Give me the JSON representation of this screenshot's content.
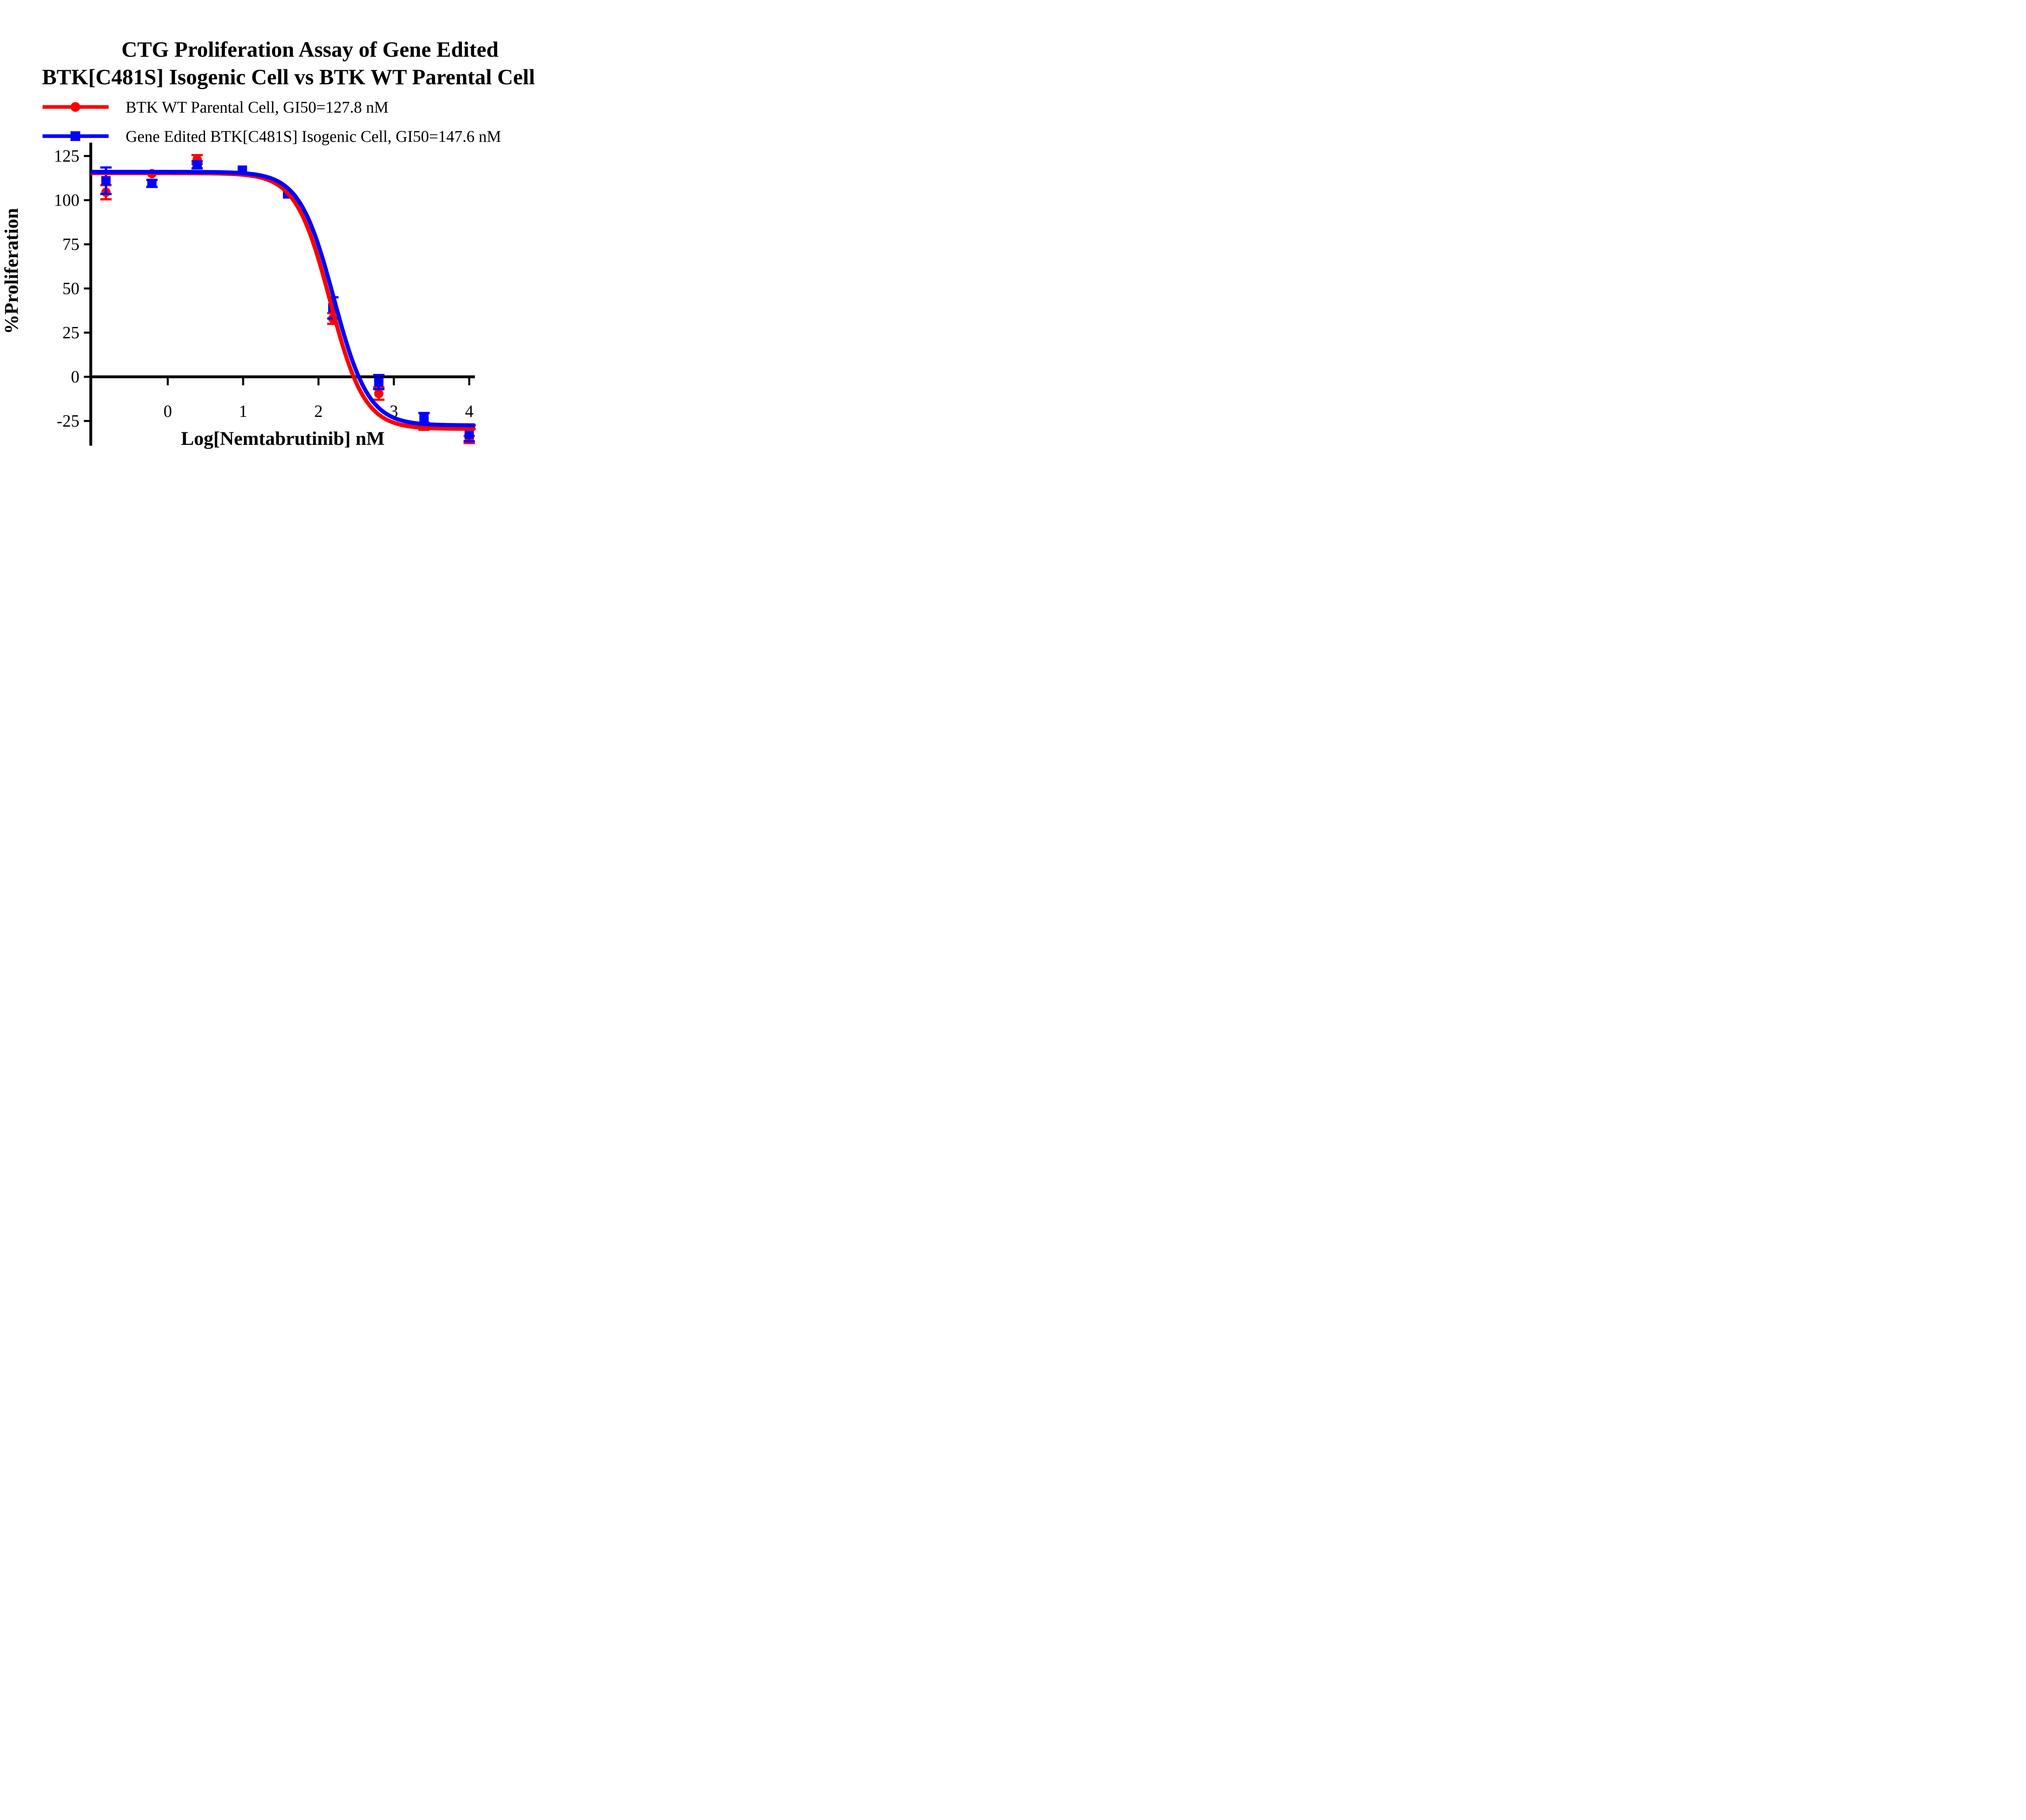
{
  "title": {
    "line1": "CTG Proliferation Assay of Gene Edited",
    "line2": "BTK[C481S] Isogenic Cell vs BTK WT Parental Cell"
  },
  "legend": {
    "items": [
      {
        "label": "BTK WT Parental Cell, GI50=127.8 nM",
        "color": "#FF0000",
        "marker": "circle"
      },
      {
        "label": "Gene Edited BTK[C481S] Isogenic Cell, GI50=147.6 nM",
        "color": "#0000FF",
        "marker": "square"
      }
    ]
  },
  "chart_data": {
    "type": "scatter",
    "title": "CTG Proliferation Assay of Gene Edited BTK[C481S] Isogenic Cell vs BTK WT Parental Cell",
    "xlabel": "Log[Nemtabrutinib] nM",
    "ylabel": "%Proliferation",
    "xlim": [
      -1.02,
      4.15
    ],
    "ylim": [
      -38,
      133
    ],
    "x_ticks": [
      0,
      1,
      2,
      3,
      4
    ],
    "y_ticks": [
      125,
      100,
      75,
      50,
      25,
      0,
      -25
    ],
    "grid": false,
    "legend_position": "top-left",
    "colors": {
      "red_series": "#FF0000",
      "blue_series": "#0000FF",
      "axis": "#000000"
    },
    "series": [
      {
        "name": "BTK WT Parental Cell",
        "gi50_label": "GI50=127.8 nM",
        "color": "#FF0000",
        "marker": "circle",
        "x": [
          -0.82,
          -0.21,
          0.39,
          0.99,
          1.59,
          2.19,
          2.8,
          3.4,
          4.0
        ],
        "y": [
          104.5,
          115.0,
          123.0,
          116.5,
          103.5,
          33.0,
          -9.5,
          -28.0,
          -35.5
        ],
        "err": [
          4.0,
          0,
          2.5,
          0,
          0,
          3.0,
          3.5,
          2.0,
          2.0
        ],
        "fit": {
          "top": 115.3,
          "bottom": -29.5,
          "logec50": 2.155,
          "hill": 1.9
        }
      },
      {
        "name": "Gene Edited BTK[C481S] Isogenic Cell",
        "gi50_label": "GI50=147.6 nM",
        "color": "#0000FF",
        "marker": "square",
        "x": [
          -0.82,
          -0.21,
          0.39,
          0.99,
          1.59,
          2.19,
          2.8,
          3.4,
          4.0
        ],
        "y": [
          111.0,
          109.5,
          120.0,
          117.0,
          103.5,
          39.0,
          -3.0,
          -23.5,
          -32.5
        ],
        "err": [
          7.5,
          2.0,
          2.0,
          0,
          0,
          6.0,
          4.0,
          3.0,
          4.0
        ],
        "fit": {
          "top": 116.0,
          "bottom": -27.5,
          "logec50": 2.205,
          "hill": 1.9
        }
      }
    ],
    "curve_x_range": [
      -1.0,
      4.07
    ]
  }
}
